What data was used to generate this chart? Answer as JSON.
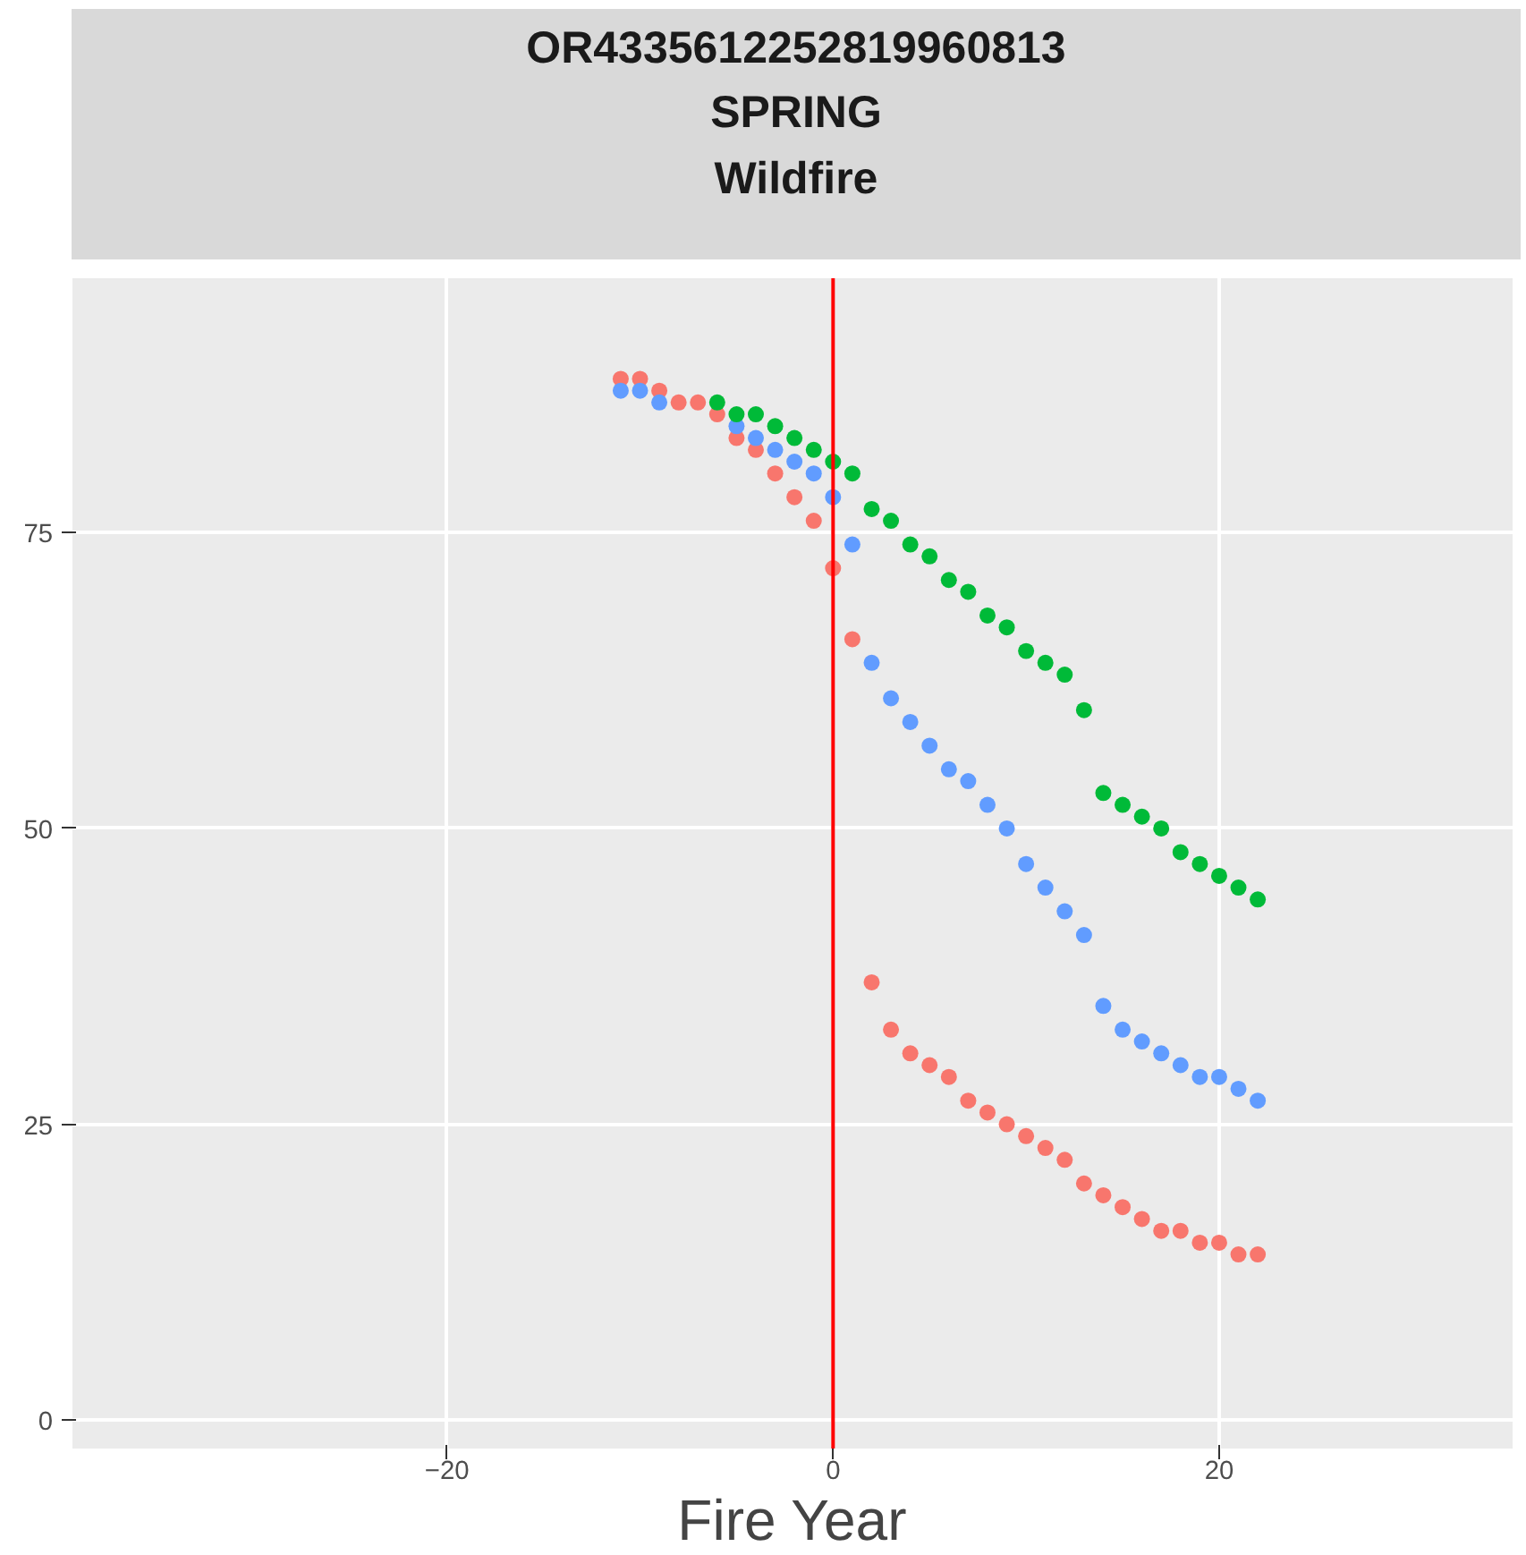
{
  "chart_data": {
    "type": "scatter",
    "title": "OR4335612252819960813\nSPRING\nWildfire",
    "xlabel": "Fire Year",
    "xlim": [
      -39.4,
      35.2
    ],
    "ylim": [
      -2.4,
      96.5
    ],
    "xticks": [
      -20,
      0,
      20
    ],
    "yticks": [
      0,
      25,
      50,
      75
    ],
    "grid": true,
    "marker": "circle",
    "ref_lines": [
      {
        "axis": "x",
        "value": 0,
        "label": null,
        "color": "#ff0000"
      }
    ],
    "series": [
      {
        "color": "#f8766d",
        "x": [
          -11,
          -10,
          -9,
          -8,
          -7,
          -6,
          -5,
          -4,
          -3,
          -2,
          -1,
          0,
          1,
          2,
          3,
          4,
          5,
          6,
          7,
          8,
          9,
          10,
          11,
          12,
          13,
          14,
          15,
          16,
          17,
          18,
          19,
          20,
          21,
          22
        ],
        "values": [
          88,
          88,
          87,
          86,
          86,
          85,
          83,
          82,
          80,
          78,
          76,
          72,
          66,
          37,
          33,
          31,
          30,
          29,
          27,
          26,
          25,
          24,
          23,
          22,
          20,
          19,
          18,
          17,
          16,
          16,
          15,
          15,
          14,
          14
        ]
      },
      {
        "color": "#619cff",
        "x": [
          -11,
          -10,
          -9,
          -5,
          -4,
          -3,
          -2,
          -1,
          0,
          1,
          2,
          3,
          4,
          5,
          6,
          7,
          8,
          9,
          10,
          11,
          12,
          13,
          14,
          15,
          16,
          17,
          18,
          19,
          20,
          21,
          22
        ],
        "values": [
          87,
          87,
          86,
          84,
          83,
          82,
          81,
          80,
          78,
          74,
          64,
          61,
          59,
          57,
          55,
          54,
          52,
          50,
          47,
          45,
          43,
          41,
          35,
          33,
          32,
          31,
          30,
          29,
          29,
          28,
          27
        ]
      },
      {
        "color": "#00ba38",
        "x": [
          -6,
          -5,
          -4,
          -3,
          -2,
          -1,
          0,
          1,
          2,
          3,
          4,
          5,
          6,
          7,
          8,
          9,
          10,
          11,
          12,
          13,
          14,
          15,
          16,
          17,
          18,
          19,
          20,
          21,
          22
        ],
        "values": [
          86,
          85,
          85,
          84,
          83,
          82,
          81,
          80,
          77,
          76,
          74,
          73,
          71,
          70,
          68,
          67,
          65,
          64,
          63,
          60,
          53,
          52,
          51,
          50,
          48,
          47,
          46,
          45,
          44
        ]
      }
    ]
  }
}
